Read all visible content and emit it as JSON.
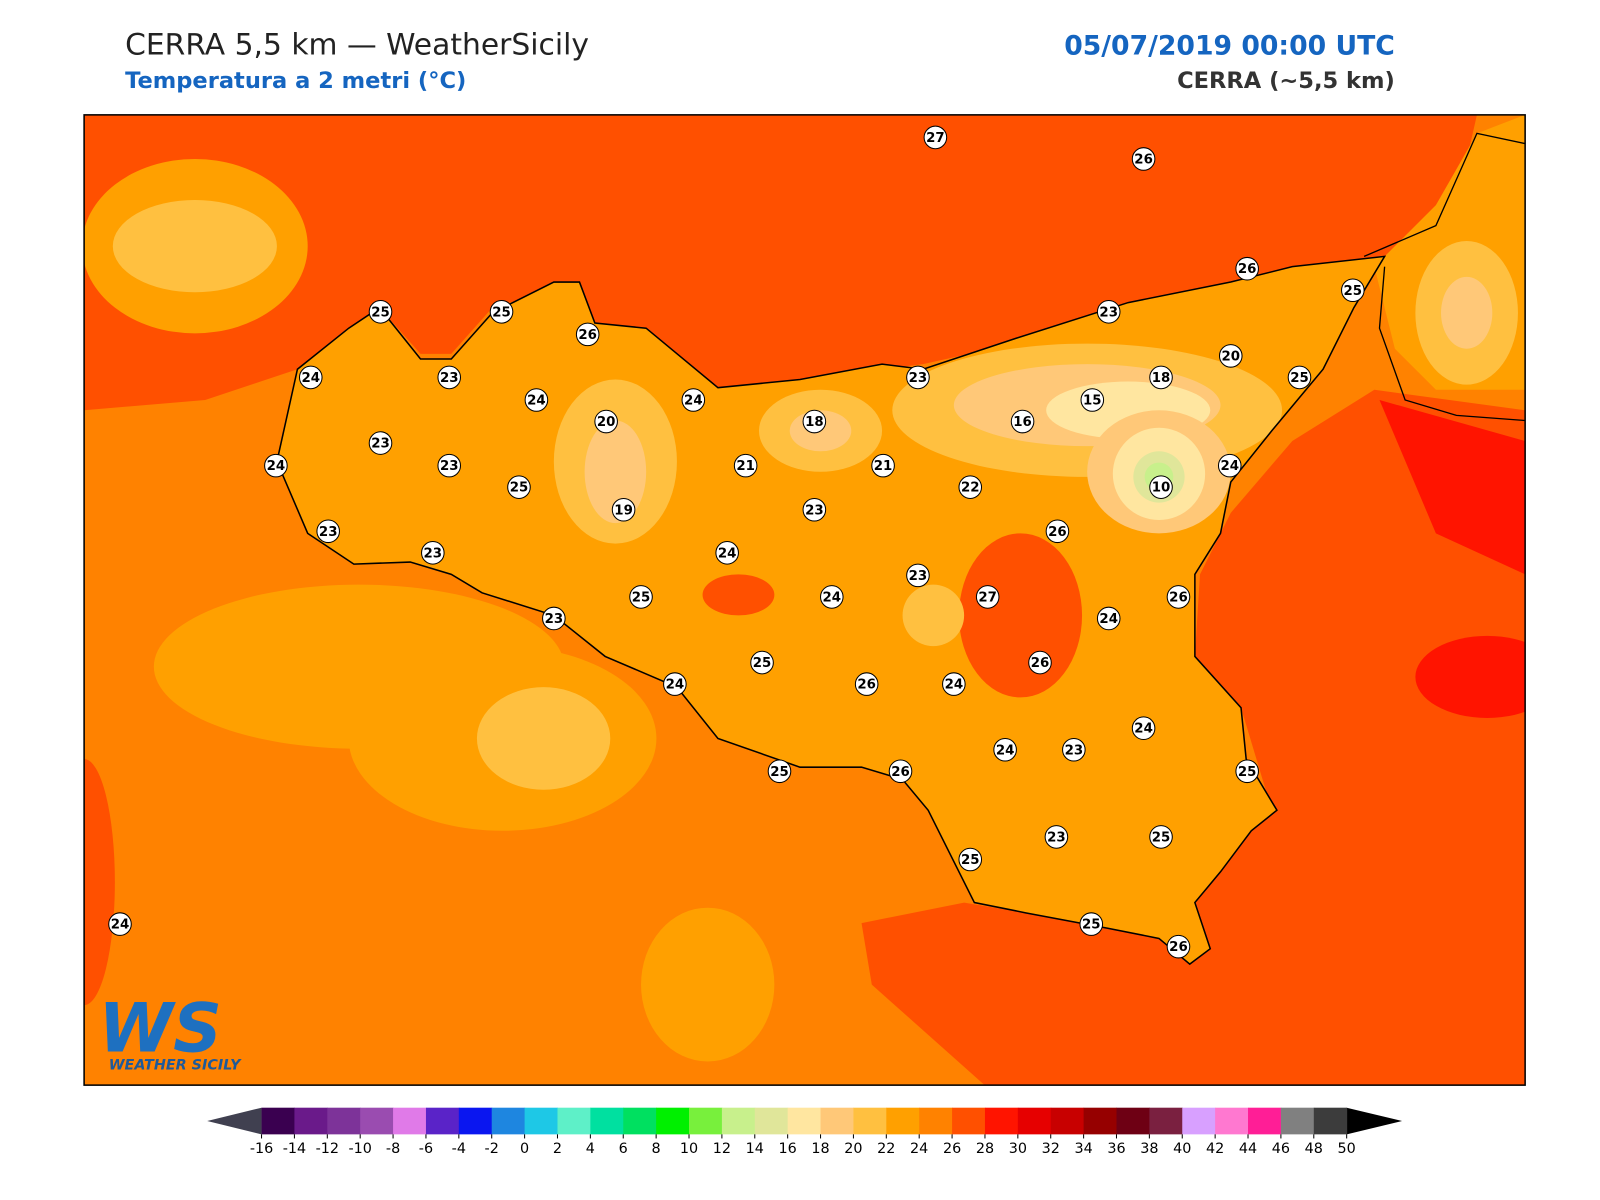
{
  "header": {
    "title": "CERRA 5,5 km — WeatherSicily",
    "subtitle": "Temperatura a 2 metri (°C)",
    "datetime": "05/07/2019 00:00 UTC",
    "model": "CERRA (~5,5 km)"
  },
  "stations": [
    27,
    26,
    26,
    25,
    25,
    25,
    26,
    23,
    24,
    23,
    24,
    24,
    20,
    18,
    23,
    15,
    18,
    20,
    25,
    16,
    23,
    24,
    23,
    25,
    21,
    21,
    22,
    10,
    24,
    19,
    23,
    23,
    23,
    24,
    26,
    23,
    25,
    24,
    27,
    26,
    23,
    24,
    25,
    26,
    24,
    26,
    24,
    24,
    24,
    23,
    25,
    26,
    25,
    23,
    25,
    25,
    25,
    26,
    24
  ],
  "colorbar": {
    "ticks": [
      -16,
      -14,
      -12,
      -10,
      -8,
      -6,
      -4,
      -2,
      0,
      2,
      4,
      6,
      8,
      10,
      12,
      14,
      16,
      18,
      20,
      22,
      24,
      26,
      28,
      30,
      32,
      34,
      36,
      38,
      40,
      42,
      44,
      46,
      48,
      50
    ],
    "colors": [
      "#3a0050",
      "#6a1a8a",
      "#7d3399",
      "#9a4cb0",
      "#e07ae8",
      "#5a23c8",
      "#0a16f0",
      "#1e86e0",
      "#1ec8e6",
      "#5ef0c8",
      "#00e0a0",
      "#00e060",
      "#00f000",
      "#78f03c",
      "#c8f08c",
      "#e0e69a",
      "#ffe6a0",
      "#ffc878",
      "#ffc040",
      "#ffa000",
      "#ff8200",
      "#ff5000",
      "#ff1400",
      "#e60000",
      "#c80000",
      "#960000",
      "#6e0014",
      "#7a2040",
      "#d8a0ff",
      "#ff78d0",
      "#ff1e96",
      "#808080",
      "#3c3c3c"
    ],
    "under_color": "#404050",
    "over_color": "#000000"
  },
  "logo": {
    "mark": "WS",
    "text": "WEATHER SICILY"
  }
}
